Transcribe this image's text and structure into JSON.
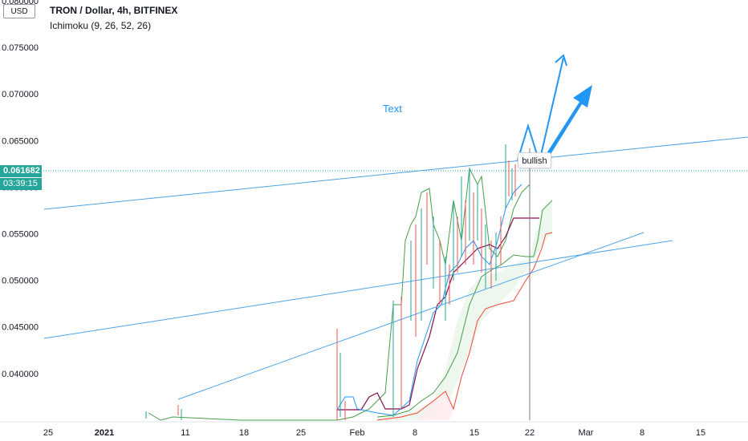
{
  "header": {
    "title": "TRON / Dollar, 4h, BITFINEX",
    "indicator": "Ichimoku (9, 26, 52, 26)",
    "currency": "USD"
  },
  "price_labels": {
    "current_price": "0.061682",
    "countdown": "03:39:15"
  },
  "annotations": {
    "text_label": "Text",
    "bullish_label": "bullish"
  },
  "colors": {
    "accent_blue": "#2196f3",
    "price_tag": "#26a69a",
    "lagging_span": "#43a047",
    "base_line": "#880e4f",
    "span_b": "#f44336",
    "conversion_line": "#2196f3"
  },
  "chart_data": {
    "type": "line",
    "title": "TRON / Dollar, 4h, BITFINEX",
    "ylim": [
      0.035,
      0.08
    ],
    "y_ticks": [
      "0.080000",
      "0.075000",
      "0.070000",
      "0.065000",
      "0.060000",
      "0.055000",
      "0.050000",
      "0.045000",
      "0.040000"
    ],
    "x_ticks": [
      "25",
      "2021",
      "11",
      "18",
      "25",
      "Feb",
      "8",
      "15",
      "22",
      "Mar",
      "8",
      "15"
    ],
    "current_price": 0.061682,
    "series": [
      {
        "name": "Price",
        "values": [
          0.036,
          0.038,
          0.042,
          0.045,
          0.048,
          0.052,
          0.056,
          0.059,
          0.0617
        ]
      },
      {
        "name": "Lagging Span",
        "values": [
          0.036,
          0.042,
          0.048,
          0.05,
          0.056,
          0.058,
          0.059,
          0.056,
          0.063
        ]
      },
      {
        "name": "Base Line",
        "values": [
          0.036,
          0.036,
          0.038,
          0.04,
          0.048,
          0.051,
          0.053,
          0.054,
          0.057
        ]
      },
      {
        "name": "Lead Span A",
        "values": [
          0.036,
          0.037,
          0.038,
          0.042,
          0.048,
          0.051,
          0.052,
          0.053,
          0.058
        ]
      },
      {
        "name": "Lead Span B",
        "values": [
          0.034,
          0.035,
          0.036,
          0.038,
          0.042,
          0.045,
          0.048,
          0.05,
          0.055
        ]
      }
    ]
  }
}
